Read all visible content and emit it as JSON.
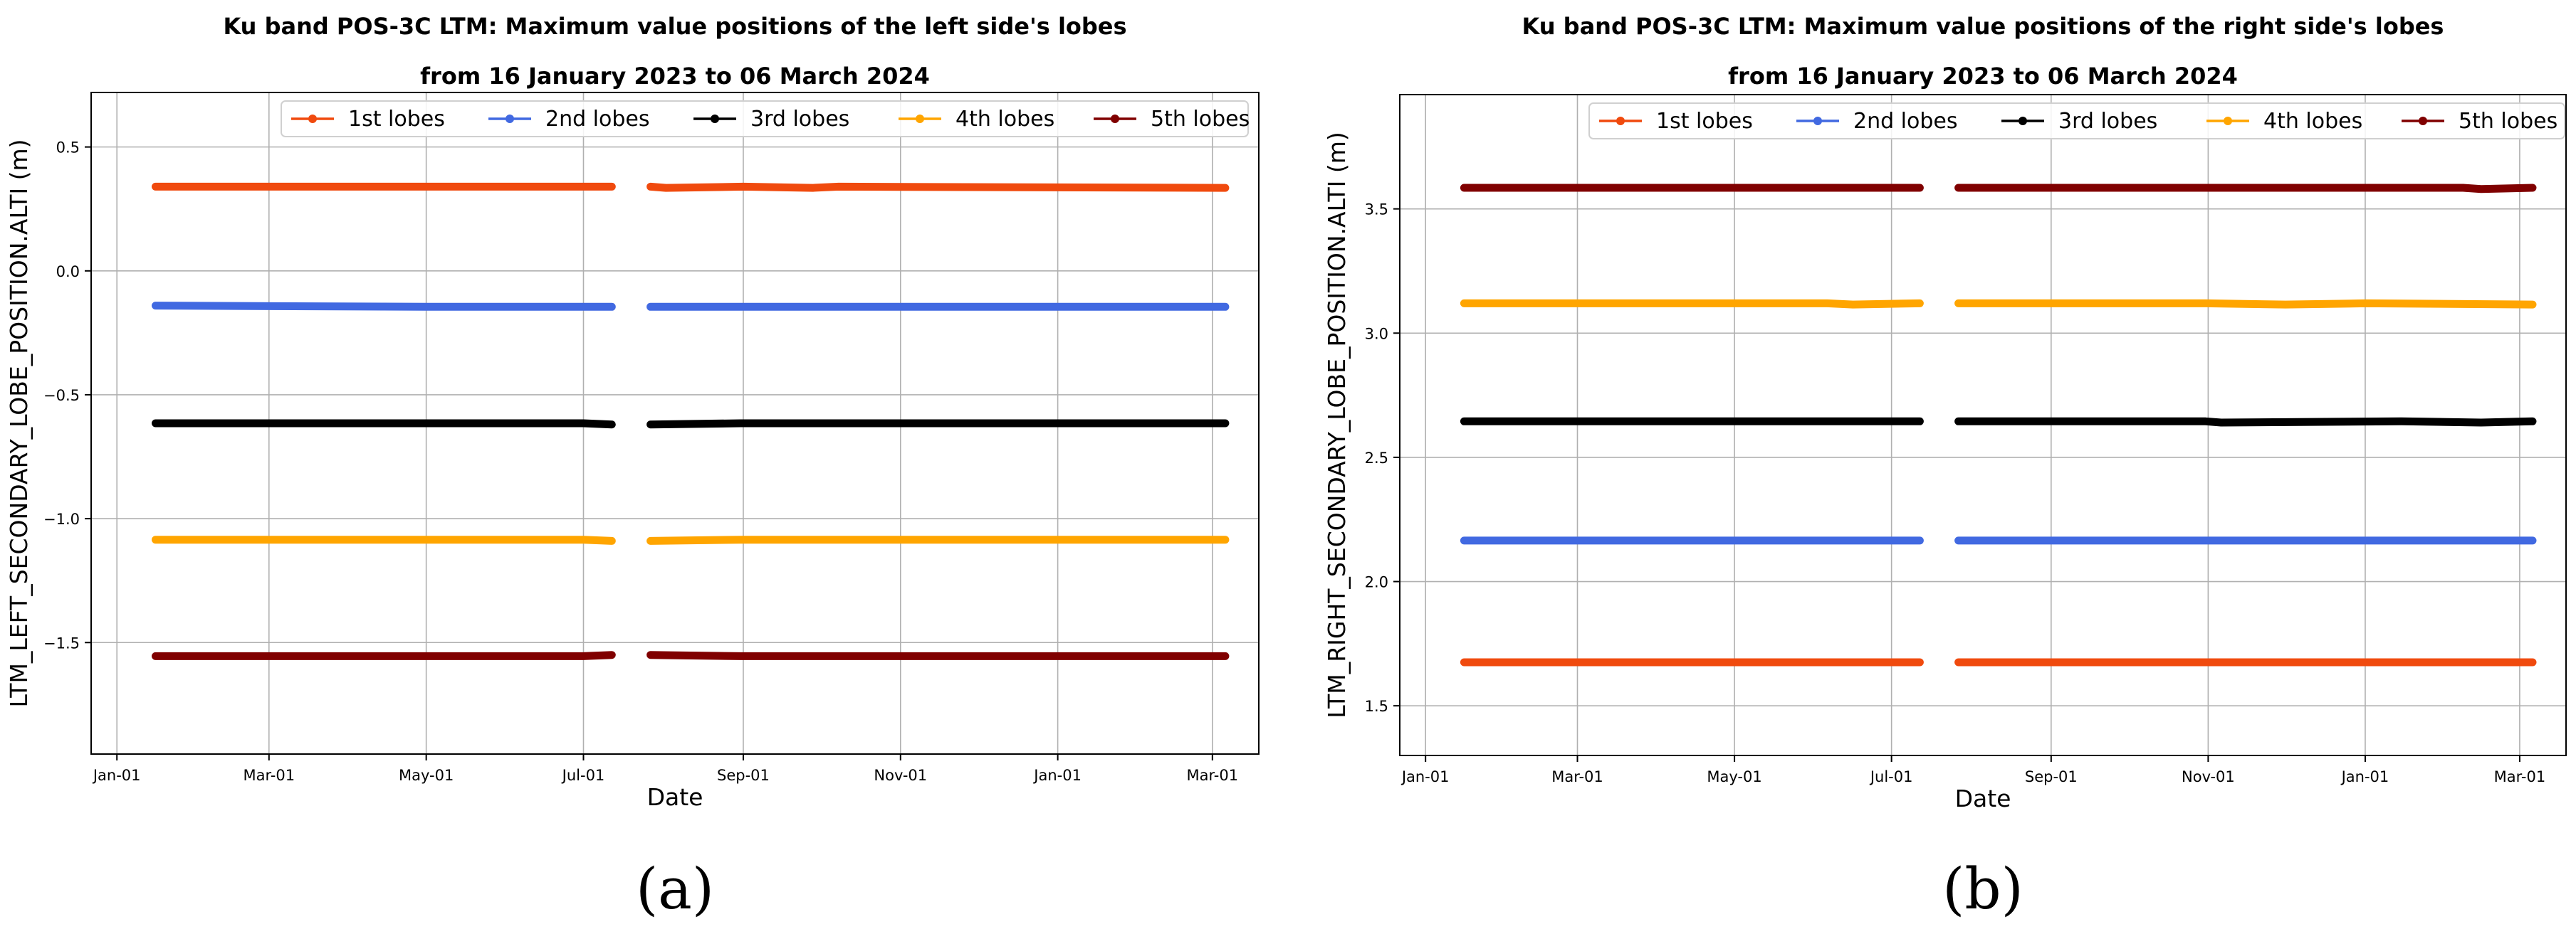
{
  "chart_data": [
    {
      "type": "line",
      "panel_label": "(a)",
      "title": "Ku band POS-3C LTM: Maximum value positions of the left side's lobes",
      "subtitle": "from 16 January 2023 to 06 March 2024",
      "xlabel": "Date",
      "ylabel": "LTM_LEFT_SECONDARY_LOBE_POSITION.ALTI (m)",
      "xlim": [
        "2022-12-22",
        "2024-03-19"
      ],
      "ylim": [
        -1.95,
        0.72
      ],
      "x_ticks": [
        "2023-01-01",
        "2023-03-01",
        "2023-05-01",
        "2023-07-01",
        "2023-09-01",
        "2023-11-01",
        "2024-01-01",
        "2024-03-01"
      ],
      "x_tick_labels": [
        "Jan-01",
        "Mar-01",
        "May-01",
        "Jul-01",
        "Sep-01",
        "Nov-01",
        "Jan-01",
        "Mar-01"
      ],
      "y_ticks": [
        0.5,
        0.0,
        -0.5,
        -1.0,
        -1.5
      ],
      "y_tick_labels": [
        "0.5",
        "0.0",
        "−0.5",
        "−1.0",
        "−1.5"
      ],
      "grid": true,
      "legend_position": "top-right",
      "series": [
        {
          "name": "1st lobes",
          "color": "#f04a0e",
          "segments": [
            {
              "x": [
                "2023-01-16",
                "2023-07-12"
              ],
              "y": [
                0.34,
                0.34
              ]
            },
            {
              "x": [
                "2023-07-27",
                "2023-08-02",
                "2023-09-01",
                "2023-09-28",
                "2023-10-08",
                "2024-03-06"
              ],
              "y": [
                0.34,
                0.335,
                0.34,
                0.335,
                0.34,
                0.335
              ]
            }
          ]
        },
        {
          "name": "2nd lobes",
          "color": "#4169e1",
          "segments": [
            {
              "x": [
                "2023-01-16",
                "2023-05-01",
                "2023-07-12"
              ],
              "y": [
                -0.14,
                -0.145,
                -0.145
              ]
            },
            {
              "x": [
                "2023-07-27",
                "2024-03-06"
              ],
              "y": [
                -0.145,
                -0.145
              ]
            }
          ]
        },
        {
          "name": "3rd lobes",
          "color": "#000000",
          "segments": [
            {
              "x": [
                "2023-01-16",
                "2023-07-01",
                "2023-07-12"
              ],
              "y": [
                -0.615,
                -0.615,
                -0.62
              ]
            },
            {
              "x": [
                "2023-07-27",
                "2023-08-31",
                "2024-03-06"
              ],
              "y": [
                -0.62,
                -0.615,
                -0.615
              ]
            }
          ]
        },
        {
          "name": "4th lobes",
          "color": "#ffa500",
          "segments": [
            {
              "x": [
                "2023-01-16",
                "2023-07-01",
                "2023-07-12"
              ],
              "y": [
                -1.085,
                -1.085,
                -1.09
              ]
            },
            {
              "x": [
                "2023-07-27",
                "2023-08-31",
                "2024-03-06"
              ],
              "y": [
                -1.09,
                -1.085,
                -1.085
              ]
            }
          ]
        },
        {
          "name": "5th lobes",
          "color": "#800000",
          "segments": [
            {
              "x": [
                "2023-01-16",
                "2023-07-01",
                "2023-07-12"
              ],
              "y": [
                -1.555,
                -1.555,
                -1.55
              ]
            },
            {
              "x": [
                "2023-07-27",
                "2023-08-31",
                "2024-03-06"
              ],
              "y": [
                -1.55,
                -1.555,
                -1.555
              ]
            }
          ]
        }
      ]
    },
    {
      "type": "line",
      "panel_label": "(b)",
      "title": "Ku band POS-3C LTM: Maximum value positions of the right side's lobes",
      "subtitle": "from 16 January 2023 to 06 March 2024",
      "xlabel": "Date",
      "ylabel": "LTM_RIGHT_SECONDARY_LOBE_POSITION.ALTI (m)",
      "xlim": [
        "2022-12-22",
        "2024-03-19"
      ],
      "ylim": [
        1.3,
        3.96
      ],
      "x_ticks": [
        "2023-01-01",
        "2023-03-01",
        "2023-05-01",
        "2023-07-01",
        "2023-09-01",
        "2023-11-01",
        "2024-01-01",
        "2024-03-01"
      ],
      "x_tick_labels": [
        "Jan-01",
        "Mar-01",
        "May-01",
        "Jul-01",
        "Sep-01",
        "Nov-01",
        "Jan-01",
        "Mar-01"
      ],
      "y_ticks": [
        3.5,
        3.0,
        2.5,
        2.0,
        1.5
      ],
      "y_tick_labels": [
        "3.5",
        "3.0",
        "2.5",
        "2.0",
        "1.5"
      ],
      "grid": true,
      "legend_position": "top-right",
      "series": [
        {
          "name": "1st lobes",
          "color": "#f04a0e",
          "segments": [
            {
              "x": [
                "2023-01-16",
                "2023-07-12"
              ],
              "y": [
                1.675,
                1.675
              ]
            },
            {
              "x": [
                "2023-07-27",
                "2024-03-06"
              ],
              "y": [
                1.675,
                1.675
              ]
            }
          ]
        },
        {
          "name": "2nd lobes",
          "color": "#4169e1",
          "segments": [
            {
              "x": [
                "2023-01-16",
                "2023-07-12"
              ],
              "y": [
                2.165,
                2.165
              ]
            },
            {
              "x": [
                "2023-07-27",
                "2024-03-06"
              ],
              "y": [
                2.165,
                2.165
              ]
            }
          ]
        },
        {
          "name": "3rd lobes",
          "color": "#000000",
          "segments": [
            {
              "x": [
                "2023-01-16",
                "2023-07-12"
              ],
              "y": [
                2.645,
                2.645
              ]
            },
            {
              "x": [
                "2023-07-27",
                "2023-10-31",
                "2023-11-06",
                "2024-01-15",
                "2024-02-15",
                "2024-03-06"
              ],
              "y": [
                2.645,
                2.645,
                2.64,
                2.645,
                2.64,
                2.645
              ]
            }
          ]
        },
        {
          "name": "4th lobes",
          "color": "#ffa500",
          "segments": [
            {
              "x": [
                "2023-01-16",
                "2023-06-06",
                "2023-06-16",
                "2023-07-12"
              ],
              "y": [
                3.12,
                3.12,
                3.115,
                3.12
              ]
            },
            {
              "x": [
                "2023-07-27",
                "2023-10-31",
                "2023-12-01",
                "2024-01-01",
                "2024-03-06"
              ],
              "y": [
                3.12,
                3.12,
                3.115,
                3.12,
                3.115
              ]
            }
          ]
        },
        {
          "name": "5th lobes",
          "color": "#800000",
          "segments": [
            {
              "x": [
                "2023-01-16",
                "2023-07-12"
              ],
              "y": [
                3.585,
                3.585
              ]
            },
            {
              "x": [
                "2023-07-27",
                "2024-02-08",
                "2024-02-15",
                "2024-03-06"
              ],
              "y": [
                3.585,
                3.585,
                3.58,
                3.585
              ]
            }
          ]
        }
      ]
    }
  ]
}
